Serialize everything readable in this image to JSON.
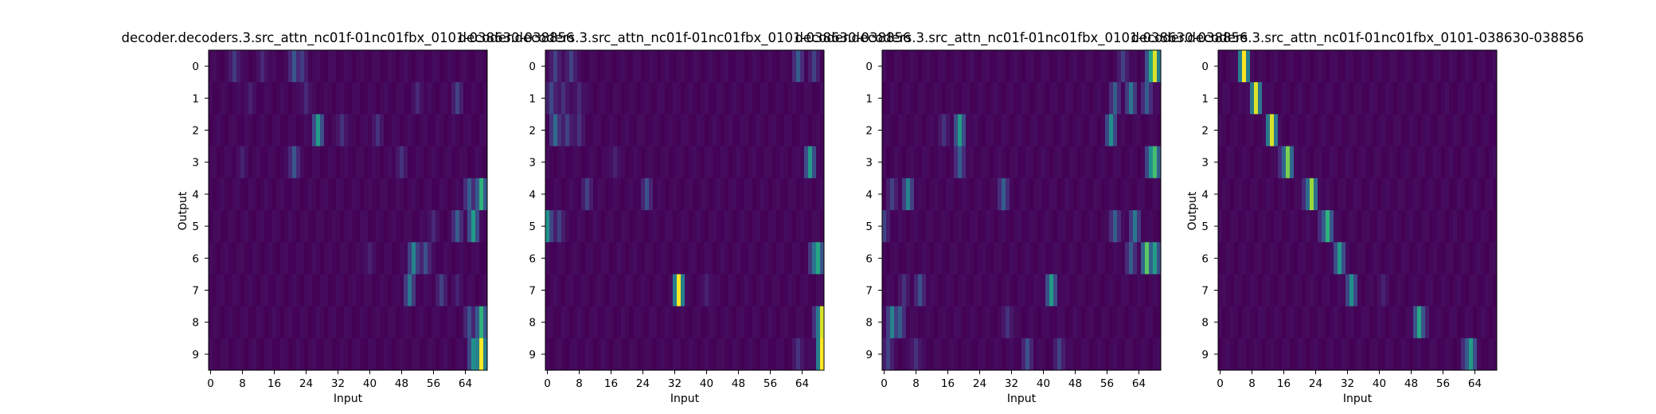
{
  "figure": {
    "background": "#ffffff"
  },
  "chart_data": [
    {
      "type": "heatmap",
      "title": "decoder.decoders.3.src_attn_nc01f-01nc01fbx_0101-038630-038856",
      "xlabel": "Input",
      "ylabel": "Output",
      "x_ticks": [
        "0",
        "8",
        "16",
        "24",
        "32",
        "40",
        "48",
        "56",
        "64"
      ],
      "y_ticks": [
        "0",
        "1",
        "2",
        "3",
        "4",
        "5",
        "6",
        "7",
        "8",
        "9"
      ],
      "n_input": 70,
      "n_output": 10,
      "colormap": "viridis",
      "peaks": [
        [
          [
            6,
            0.18
          ],
          [
            21,
            0.28
          ],
          [
            23,
            0.18
          ],
          [
            13,
            0.12
          ]
        ],
        [
          [
            10,
            0.1
          ],
          [
            24,
            0.12
          ],
          [
            52,
            0.12
          ],
          [
            62,
            0.2
          ]
        ],
        [
          [
            27,
            0.55
          ],
          [
            33,
            0.15
          ],
          [
            42,
            0.15
          ]
        ],
        [
          [
            21,
            0.28
          ],
          [
            8,
            0.1
          ],
          [
            48,
            0.15
          ]
        ],
        [
          [
            68,
            0.65
          ],
          [
            65,
            0.3
          ]
        ],
        [
          [
            66,
            0.55
          ],
          [
            62,
            0.3
          ],
          [
            56,
            0.12
          ]
        ],
        [
          [
            51,
            0.45
          ],
          [
            54,
            0.25
          ],
          [
            40,
            0.1
          ]
        ],
        [
          [
            50,
            0.4
          ],
          [
            58,
            0.2
          ],
          [
            62,
            0.1
          ]
        ],
        [
          [
            68,
            0.65
          ],
          [
            65,
            0.25
          ]
        ],
        [
          [
            68,
            1.0
          ],
          [
            66,
            0.5
          ]
        ]
      ]
    },
    {
      "type": "heatmap",
      "title": "decoder.decoders.3.src_attn_nc01f-01nc01fbx_0101-038630-038856",
      "xlabel": "Input",
      "ylabel": "",
      "x_ticks": [
        "0",
        "8",
        "16",
        "24",
        "32",
        "40",
        "48",
        "56",
        "64"
      ],
      "y_ticks": [
        "0",
        "1",
        "2",
        "3",
        "4",
        "5",
        "6",
        "7",
        "8",
        "9"
      ],
      "n_input": 70,
      "n_output": 10,
      "colormap": "viridis",
      "peaks": [
        [
          [
            2,
            0.2
          ],
          [
            6,
            0.2
          ],
          [
            63,
            0.3
          ],
          [
            67,
            0.2
          ]
        ],
        [
          [
            1,
            0.22
          ],
          [
            4,
            0.15
          ],
          [
            8,
            0.12
          ]
        ],
        [
          [
            2,
            0.35
          ],
          [
            5,
            0.2
          ],
          [
            8,
            0.15
          ]
        ],
        [
          [
            66,
            0.55
          ],
          [
            17,
            0.1
          ]
        ],
        [
          [
            10,
            0.2
          ],
          [
            25,
            0.25
          ]
        ],
        [
          [
            0,
            0.5
          ],
          [
            3,
            0.2
          ]
        ],
        [
          [
            68,
            0.6
          ],
          [
            67,
            0.4
          ]
        ],
        [
          [
            33,
            1.0
          ],
          [
            40,
            0.1
          ]
        ],
        [
          [
            69,
            0.95
          ],
          [
            68,
            0.35
          ]
        ],
        [
          [
            69,
            1.0
          ],
          [
            63,
            0.15
          ]
        ]
      ]
    },
    {
      "type": "heatmap",
      "title": "decoder.decoders.3.src_attn_nc01f-01nc01fbx_0101-038630-038856",
      "xlabel": "Input",
      "ylabel": "",
      "x_ticks": [
        "0",
        "8",
        "16",
        "24",
        "32",
        "40",
        "48",
        "56",
        "64"
      ],
      "y_ticks": [
        "0",
        "1",
        "2",
        "3",
        "4",
        "5",
        "6",
        "7",
        "8",
        "9"
      ],
      "n_input": 70,
      "n_output": 10,
      "colormap": "viridis",
      "peaks": [
        [
          [
            68,
            0.95
          ],
          [
            67,
            0.6
          ],
          [
            60,
            0.2
          ]
        ],
        [
          [
            62,
            0.4
          ],
          [
            58,
            0.3
          ],
          [
            66,
            0.3
          ]
        ],
        [
          [
            19,
            0.55
          ],
          [
            57,
            0.5
          ],
          [
            15,
            0.15
          ]
        ],
        [
          [
            68,
            0.7
          ],
          [
            67,
            0.5
          ],
          [
            19,
            0.3
          ]
        ],
        [
          [
            6,
            0.45
          ],
          [
            30,
            0.3
          ],
          [
            2,
            0.2
          ]
        ],
        [
          [
            63,
            0.4
          ],
          [
            58,
            0.3
          ],
          [
            0,
            0.2
          ]
        ],
        [
          [
            66,
            0.75
          ],
          [
            68,
            0.55
          ],
          [
            62,
            0.3
          ]
        ],
        [
          [
            42,
            0.55
          ],
          [
            9,
            0.25
          ],
          [
            5,
            0.15
          ]
        ],
        [
          [
            2,
            0.45
          ],
          [
            4,
            0.3
          ],
          [
            31,
            0.15
          ]
        ],
        [
          [
            36,
            0.25
          ],
          [
            44,
            0.2
          ],
          [
            1,
            0.2
          ],
          [
            8,
            0.15
          ]
        ]
      ]
    },
    {
      "type": "heatmap",
      "title": "decoder.decoders.3.src_attn_nc01f-01nc01fbx_0101-038630-038856",
      "xlabel": "Input",
      "ylabel": "Output",
      "x_ticks": [
        "0",
        "8",
        "16",
        "24",
        "32",
        "40",
        "48",
        "56",
        "64"
      ],
      "y_ticks": [
        "0",
        "1",
        "2",
        "3",
        "4",
        "5",
        "6",
        "7",
        "8",
        "9"
      ],
      "n_input": 70,
      "n_output": 10,
      "colormap": "viridis",
      "peaks": [
        [
          [
            6,
            1.0
          ]
        ],
        [
          [
            9,
            0.95
          ]
        ],
        [
          [
            13,
            0.95
          ]
        ],
        [
          [
            17,
            0.8
          ],
          [
            16,
            0.3
          ]
        ],
        [
          [
            23,
            0.85
          ],
          [
            22,
            0.3
          ]
        ],
        [
          [
            27,
            0.65
          ],
          [
            26,
            0.3
          ]
        ],
        [
          [
            30,
            0.55
          ]
        ],
        [
          [
            33,
            0.5
          ],
          [
            41,
            0.1
          ]
        ],
        [
          [
            50,
            0.6
          ],
          [
            51,
            0.2
          ]
        ],
        [
          [
            63,
            0.55
          ],
          [
            62,
            0.3
          ]
        ]
      ]
    }
  ]
}
